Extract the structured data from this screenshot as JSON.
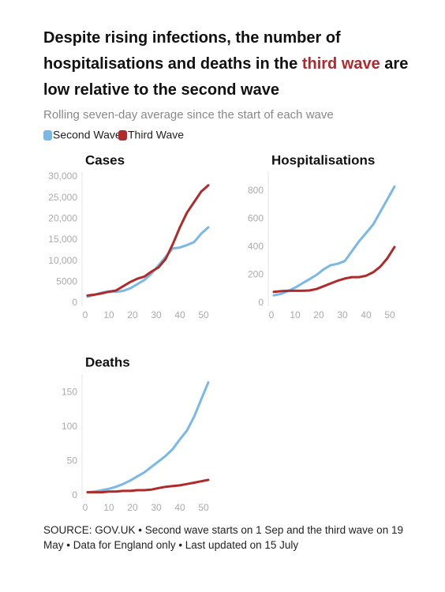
{
  "header": {
    "title_parts": [
      "Despite rising infections, the number of hospitalisations and deaths in the ",
      "third wave",
      " are low relative to the second wave"
    ],
    "subtitle": "Rolling seven-day average since the start of each wave"
  },
  "source": "SOURCE: GOV.UK • Second wave starts on 1 Sep and the third wave on 19 May • Data for England only • Last updated on 15 July",
  "chart_data": [
    {
      "type": "line",
      "title": "Cases",
      "x": [
        1,
        4,
        7,
        10,
        13,
        16,
        19,
        22,
        25,
        28,
        31,
        34,
        37,
        40,
        43,
        46,
        49,
        52
      ],
      "series": [
        {
          "name": "Second Wave",
          "color": "#7ab8e8",
          "values": [
            1500,
            2000,
            2500,
            2800,
            2700,
            2900,
            3500,
            4500,
            5500,
            7000,
            9000,
            11000,
            13000,
            13200,
            13800,
            14500,
            16500,
            18000
          ]
        },
        {
          "name": "Third Wave",
          "color": "#b02a2a",
          "values": [
            1800,
            2000,
            2300,
            2700,
            3000,
            4000,
            5000,
            5800,
            6300,
            7500,
            8500,
            10500,
            14000,
            18000,
            21500,
            24000,
            26500,
            28000
          ]
        }
      ],
      "xlim": [
        0,
        53
      ],
      "xticks": [
        0,
        10,
        20,
        30,
        40,
        50
      ],
      "ylim": [
        0,
        30000
      ],
      "yticks": [
        0,
        5000,
        {
          "value": 10000,
          "label": "10,000"
        },
        {
          "value": 15000,
          "label": "15,000"
        },
        {
          "value": 20000,
          "label": "20,000"
        },
        {
          "value": 25000,
          "label": "25,000"
        },
        {
          "value": 30000,
          "label": "30,000"
        }
      ]
    },
    {
      "type": "line",
      "title": "Hospitalisations",
      "x": [
        1,
        4,
        7,
        10,
        13,
        16,
        19,
        22,
        25,
        28,
        31,
        34,
        37,
        40,
        43,
        46,
        49,
        52
      ],
      "series": [
        {
          "name": "Second Wave",
          "color": "#7ab8e8",
          "values": [
            55,
            65,
            85,
            110,
            140,
            170,
            200,
            240,
            270,
            280,
            300,
            370,
            440,
            500,
            560,
            650,
            740,
            830
          ]
        },
        {
          "name": "Third Wave",
          "color": "#b02a2a",
          "values": [
            80,
            85,
            88,
            88,
            88,
            90,
            100,
            120,
            140,
            160,
            175,
            185,
            185,
            195,
            220,
            260,
            320,
            400
          ]
        }
      ],
      "xlim": [
        0,
        53
      ],
      "xticks": [
        0,
        10,
        20,
        30,
        40,
        50
      ],
      "ylim": [
        0,
        900
      ],
      "yticks": [
        0,
        200,
        400,
        600,
        800
      ]
    },
    {
      "type": "line",
      "title": "Deaths",
      "x": [
        1,
        4,
        7,
        10,
        13,
        16,
        19,
        22,
        25,
        28,
        31,
        34,
        37,
        40,
        43,
        46,
        49,
        52
      ],
      "series": [
        {
          "name": "Second Wave",
          "color": "#7ab8e8",
          "values": [
            5,
            6,
            8,
            10,
            13,
            17,
            22,
            28,
            34,
            42,
            50,
            58,
            68,
            82,
            95,
            115,
            140,
            165
          ]
        },
        {
          "name": "Third Wave",
          "color": "#b02a2a",
          "values": [
            5,
            5,
            5,
            6,
            6,
            7,
            7,
            8,
            8,
            9,
            11,
            13,
            14,
            15,
            17,
            19,
            21,
            23
          ]
        }
      ],
      "xlim": [
        0,
        53
      ],
      "xticks": [
        0,
        10,
        20,
        30,
        40,
        50
      ],
      "ylim": [
        0,
        170
      ],
      "yticks": [
        0,
        50,
        100,
        150
      ]
    }
  ]
}
